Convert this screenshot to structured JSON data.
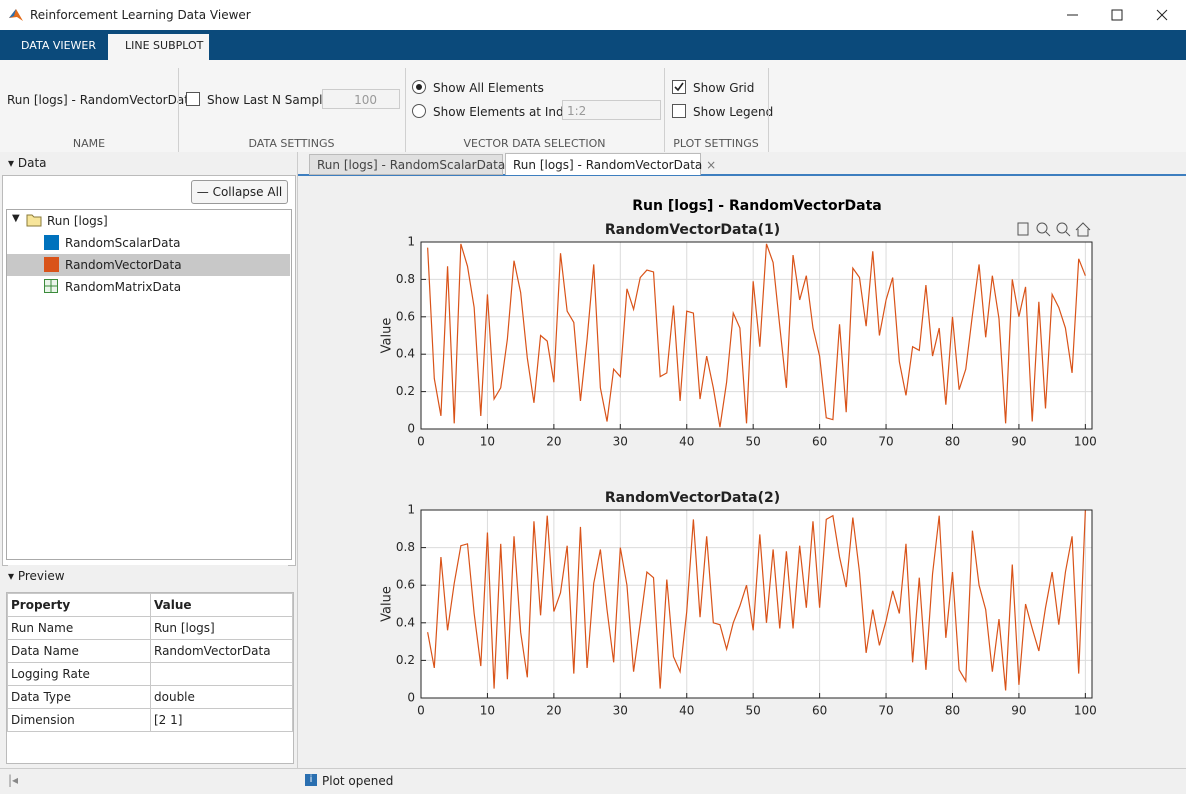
{
  "window": {
    "title": "Reinforcement Learning Data Viewer"
  },
  "ribbon": {
    "tabs": [
      "DATA VIEWER",
      "LINE SUBPLOT"
    ],
    "name": {
      "value": "Run [logs] - RandomVectorData",
      "label": "NAME"
    },
    "data_settings": {
      "option": "Show Last N Samples",
      "n": 100,
      "label": "DATA SETTINGS"
    },
    "vector_selection": {
      "options": [
        "Show All Elements",
        "Show Elements at Index"
      ],
      "index": "1:2",
      "label": "VECTOR DATA SELECTION"
    },
    "plot_settings": {
      "options": [
        "Show Grid",
        "Show Legend"
      ],
      "label": "PLOT SETTINGS"
    }
  },
  "data_panel": {
    "title": "Data",
    "collapse_button": "Collapse All",
    "tree": {
      "root": "Run [logs]",
      "items": [
        "RandomScalarData",
        "RandomVectorData",
        "RandomMatrixData"
      ]
    }
  },
  "preview": {
    "title": "Preview",
    "table": {
      "header": [
        "Property",
        "Value"
      ],
      "rows": [
        [
          "Run Name",
          "Run [logs]"
        ],
        [
          "Data Name",
          "RandomVectorData"
        ],
        [
          "Logging Rate"
        ],
        [
          "Data Type",
          "double"
        ],
        [
          "Dimension",
          "[2 1]"
        ]
      ]
    }
  },
  "plot_tabs": [
    "Run [logs] - RandomScalarData",
    "Run [logs] - RandomVectorData"
  ],
  "plot_title": "Run [logs] - RandomVectorData",
  "chart_data": [
    {
      "type": "line",
      "title": "RandomVectorData(1)",
      "ylabel": "Value",
      "color": "#d95319",
      "x": [
        1,
        2,
        3,
        4,
        5,
        6,
        7,
        8,
        9,
        10,
        11,
        12,
        13,
        14,
        15,
        16,
        17,
        18,
        19,
        20,
        21,
        22,
        23,
        24,
        25,
        26,
        27,
        28,
        29,
        30,
        31,
        32,
        33,
        34,
        35,
        36,
        37,
        38,
        39,
        40,
        41,
        42,
        43,
        44,
        45,
        46,
        47,
        48,
        49,
        50,
        51,
        52,
        53,
        54,
        55,
        56,
        57,
        58,
        59,
        60,
        61,
        62,
        63,
        64,
        65,
        66,
        67,
        68,
        69,
        70,
        71,
        72,
        73,
        74,
        75,
        76,
        77,
        78,
        79,
        80,
        81,
        82,
        83,
        84,
        85,
        86,
        87,
        88,
        89,
        90,
        91,
        92,
        93,
        94,
        95,
        96,
        97,
        98,
        99,
        100
      ],
      "values": [
        0.97,
        0.27,
        0.07,
        0.87,
        0.03,
        0.99,
        0.87,
        0.65,
        0.07,
        0.72,
        0.16,
        0.22,
        0.48,
        0.9,
        0.73,
        0.38,
        0.14,
        0.5,
        0.47,
        0.25,
        0.94,
        0.63,
        0.57,
        0.15,
        0.48,
        0.88,
        0.22,
        0.04,
        0.32,
        0.28,
        0.75,
        0.64,
        0.81,
        0.85,
        0.84,
        0.28,
        0.3,
        0.66,
        0.15,
        0.63,
        0.62,
        0.16,
        0.39,
        0.22,
        0.01,
        0.25,
        0.62,
        0.54,
        0.03,
        0.79,
        0.44,
        0.99,
        0.89,
        0.55,
        0.22,
        0.93,
        0.69,
        0.82,
        0.54,
        0.39,
        0.06,
        0.05,
        0.56,
        0.09,
        0.86,
        0.81,
        0.55,
        0.95,
        0.5,
        0.69,
        0.81,
        0.36,
        0.18,
        0.44,
        0.42,
        0.77,
        0.39,
        0.54,
        0.13,
        0.6,
        0.21,
        0.32,
        0.61,
        0.88,
        0.49,
        0.82,
        0.59,
        0.03,
        0.8,
        0.6,
        0.76,
        0.04,
        0.68,
        0.11,
        0.72,
        0.65,
        0.54,
        0.3,
        0.91,
        0.82
      ],
      "xlim": [
        0,
        101
      ],
      "ylim": [
        0,
        1
      ],
      "xticks": [
        0,
        10,
        20,
        30,
        40,
        50,
        60,
        70,
        80,
        90,
        100
      ],
      "yticks": [
        0,
        0.2,
        0.4,
        0.6,
        0.8,
        1
      ],
      "grid": true
    },
    {
      "type": "line",
      "title": "RandomVectorData(2)",
      "ylabel": "Value",
      "color": "#d95319",
      "x": [
        1,
        2,
        3,
        4,
        5,
        6,
        7,
        8,
        9,
        10,
        11,
        12,
        13,
        14,
        15,
        16,
        17,
        18,
        19,
        20,
        21,
        22,
        23,
        24,
        25,
        26,
        27,
        28,
        29,
        30,
        31,
        32,
        33,
        34,
        35,
        36,
        37,
        38,
        39,
        40,
        41,
        42,
        43,
        44,
        45,
        46,
        47,
        48,
        49,
        50,
        51,
        52,
        53,
        54,
        55,
        56,
        57,
        58,
        59,
        60,
        61,
        62,
        63,
        64,
        65,
        66,
        67,
        68,
        69,
        70,
        71,
        72,
        73,
        74,
        75,
        76,
        77,
        78,
        79,
        80,
        81,
        82,
        83,
        84,
        85,
        86,
        87,
        88,
        89,
        90,
        91,
        92,
        93,
        94,
        95,
        96,
        97,
        98,
        99,
        100
      ],
      "values": [
        0.35,
        0.16,
        0.75,
        0.36,
        0.61,
        0.81,
        0.82,
        0.45,
        0.17,
        0.88,
        0.05,
        0.82,
        0.1,
        0.86,
        0.35,
        0.11,
        0.94,
        0.44,
        0.97,
        0.46,
        0.56,
        0.81,
        0.13,
        0.91,
        0.16,
        0.61,
        0.79,
        0.47,
        0.19,
        0.8,
        0.6,
        0.14,
        0.4,
        0.67,
        0.64,
        0.05,
        0.63,
        0.22,
        0.14,
        0.46,
        0.95,
        0.43,
        0.86,
        0.4,
        0.39,
        0.26,
        0.4,
        0.49,
        0.6,
        0.36,
        0.87,
        0.4,
        0.79,
        0.37,
        0.78,
        0.37,
        0.81,
        0.48,
        0.94,
        0.48,
        0.95,
        0.97,
        0.75,
        0.59,
        0.96,
        0.67,
        0.24,
        0.47,
        0.28,
        0.41,
        0.57,
        0.45,
        0.82,
        0.19,
        0.64,
        0.15,
        0.66,
        0.97,
        0.32,
        0.67,
        0.15,
        0.09,
        0.89,
        0.6,
        0.47,
        0.14,
        0.42,
        0.04,
        0.71,
        0.07,
        0.5,
        0.37,
        0.25,
        0.48,
        0.67,
        0.39,
        0.67,
        0.86,
        0.13,
        1
      ],
      "xlim": [
        0,
        101
      ],
      "ylim": [
        0,
        1
      ],
      "xticks": [
        0,
        10,
        20,
        30,
        40,
        50,
        60,
        70,
        80,
        90,
        100
      ],
      "yticks": [
        0,
        0.2,
        0.4,
        0.6,
        0.8,
        1
      ],
      "grid": true
    }
  ],
  "status": "Plot opened"
}
